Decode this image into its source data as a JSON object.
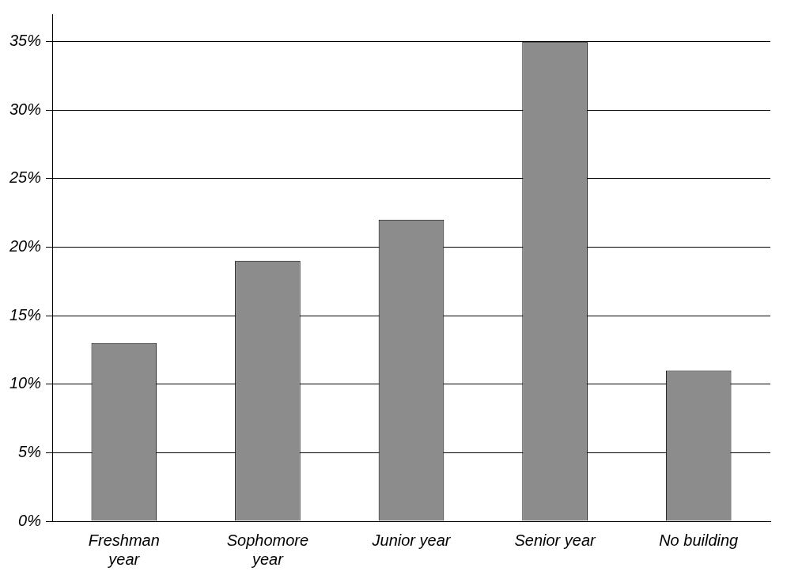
{
  "chart_data": {
    "type": "bar",
    "categories": [
      "Freshman year",
      "Sophomore year",
      "Junior year",
      "Senior year",
      "No building"
    ],
    "values": [
      13,
      19,
      22,
      35,
      11
    ],
    "color": "#8c8c8c",
    "ylim": [
      0,
      37
    ],
    "yticks": [
      {
        "value": 0,
        "label": "0%"
      },
      {
        "value": 5,
        "label": "5%"
      },
      {
        "value": 10,
        "label": "10%"
      },
      {
        "value": 15,
        "label": "15%"
      },
      {
        "value": 20,
        "label": "20%"
      },
      {
        "value": 25,
        "label": "25%"
      },
      {
        "value": 30,
        "label": "30%"
      },
      {
        "value": 35,
        "label": "35%"
      }
    ],
    "grid": "y"
  }
}
